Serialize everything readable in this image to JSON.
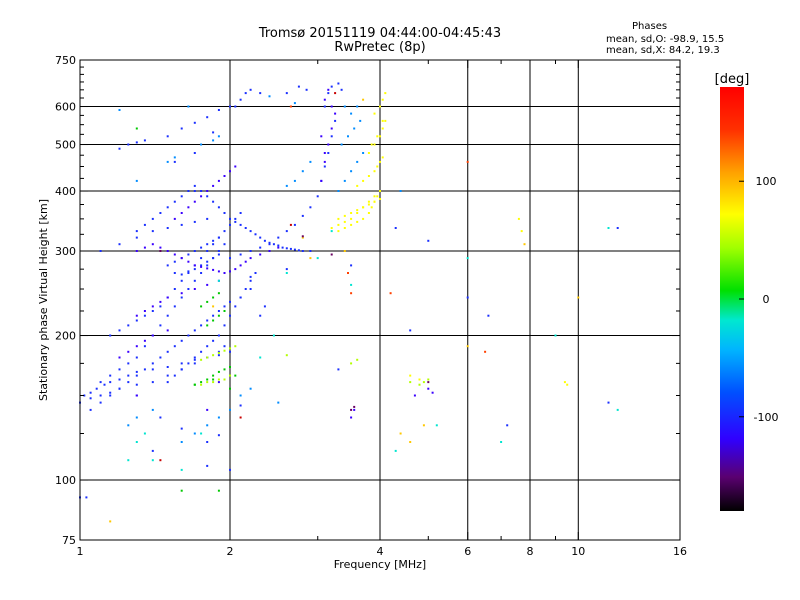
{
  "header": {
    "title_line1": "Tromsø 20151119 04:44:00-04:45:43",
    "title_line2": "RwPretec (8p)"
  },
  "stats": {
    "heading": "Phases",
    "line1": "mean, sd,O: -98.9, 15.5",
    "line2": "mean, sd,X:  84.2, 19.3"
  },
  "chart_data": {
    "type": "scatter",
    "xlabel": "Frequency [MHz]",
    "ylabel": "Stationary phase Virtual Height [km]",
    "xscale": "log",
    "yscale": "log",
    "xlim": [
      1,
      16
    ],
    "ylim": [
      75,
      750
    ],
    "xticks": [
      1,
      2,
      4,
      6,
      8,
      10,
      16
    ],
    "xtick_labels": [
      "1",
      "2",
      "4",
      "6",
      "8",
      "10",
      "16"
    ],
    "x_minor_ticks": [
      3,
      5,
      7,
      9
    ],
    "yticks": [
      75,
      100,
      200,
      300,
      400,
      500,
      600,
      750
    ],
    "ytick_labels": [
      "75",
      "100",
      "200",
      "300",
      "400",
      "500",
      "600",
      "750"
    ],
    "y_minor_ticks": [
      125,
      150,
      175,
      225,
      250,
      275,
      325,
      350,
      375,
      425,
      450,
      475,
      525,
      550,
      575,
      625,
      650,
      675,
      700,
      725
    ],
    "grid": true,
    "colorbar": {
      "label": "[deg]",
      "range": [
        -180,
        180
      ],
      "ticks": [
        100,
        0,
        -100
      ],
      "tick_labels": [
        "100",
        "0",
        "-100"
      ]
    },
    "series": [
      {
        "phase": -100,
        "color": "#1a2fff",
        "x": [
          1.0,
          1.05,
          1.1,
          1.15,
          1.2,
          1.3,
          1.4,
          1.5,
          1.6,
          1.7,
          1.8,
          1.9,
          1.95,
          1.55,
          1.6,
          1.65,
          1.7,
          1.75,
          1.8,
          1.85,
          1.9,
          1.5,
          1.55,
          1.6,
          1.65,
          1.7,
          1.75,
          1.8,
          1.85,
          1.9,
          2.0,
          2.1,
          2.2,
          2.3,
          2.4,
          2.5,
          2.6,
          2.7,
          2.8,
          2.9,
          3.0,
          3.05,
          3.1,
          3.15,
          3.2,
          3.25,
          3.1,
          3.15,
          3.2,
          3.3,
          3.35,
          1.2,
          1.25,
          1.3,
          1.35,
          1.5,
          1.6,
          1.7,
          1.8,
          1.9,
          2.0,
          1.55,
          1.7,
          1.85,
          2.05,
          2.1,
          2.15,
          2.2,
          2.3,
          2.6,
          2.75,
          2.85,
          1.1,
          1.15,
          1.2,
          1.25,
          1.3,
          1.35,
          1.4,
          1.45,
          1.5,
          1.55,
          1.6,
          1.65,
          1.7,
          1.75,
          1.8,
          1.85,
          1.9,
          1.95,
          1.3,
          1.35,
          1.4,
          1.45,
          1.5,
          1.55,
          1.6,
          1.65,
          1.7,
          1.75,
          1.8,
          1.85,
          1.9,
          1.95,
          2.0,
          2.05,
          2.1,
          2.15,
          2.2,
          2.25,
          2.3,
          2.35,
          2.4,
          2.45,
          2.5,
          2.55,
          2.6,
          2.65,
          2.7,
          2.75,
          2.8,
          2.9,
          1.15,
          1.2,
          1.25,
          1.3,
          1.35,
          1.4,
          1.45,
          1.5,
          1.55,
          1.6,
          1.65,
          1.7,
          1.75,
          1.8,
          1.85,
          1.9,
          1.95,
          2.0,
          2.05,
          2.1,
          1.5,
          1.55,
          1.6,
          1.65,
          1.7,
          1.75,
          1.8,
          1.85,
          1.9,
          1.95,
          2.0,
          2.05,
          2.1,
          2.15,
          2.2,
          2.25,
          1.02,
          1.05,
          1.08,
          1.12,
          1.15,
          1.2,
          1.25,
          1.3,
          1.4,
          1.5,
          1.6,
          1.7,
          1.8,
          1.9,
          2.0,
          1.05,
          1.1,
          1.15,
          1.2,
          1.25,
          1.3,
          1.35,
          1.4,
          1.45,
          1.5,
          1.55,
          1.6,
          1.65,
          1.7,
          1.75,
          1.8,
          1.85,
          1.9,
          1.95,
          2.0,
          1.1,
          1.2,
          1.3,
          1.4,
          1.5,
          1.6,
          1.7,
          1.8,
          2.1,
          2.2,
          2.3,
          2.35,
          3.5,
          4.6,
          6.6,
          6.0,
          5.0,
          7.2,
          12.0,
          11.5,
          4.3,
          2.6,
          2.2,
          3.3,
          1.7,
          1.8,
          1.4,
          1.6,
          1.9,
          2.1,
          1.45,
          2.0,
          1.3,
          1.8,
          1.0,
          1.03
        ],
        "y": [
          145,
          148,
          150,
          152,
          155,
          158,
          160,
          165,
          170,
          175,
          180,
          185,
          190,
          270,
          268,
          272,
          275,
          280,
          285,
          290,
          295,
          280,
          285,
          290,
          295,
          300,
          305,
          310,
          315,
          320,
          290,
          295,
          300,
          305,
          310,
          320,
          330,
          340,
          355,
          370,
          390,
          420,
          450,
          480,
          520,
          560,
          600,
          640,
          660,
          670,
          650,
          490,
          500,
          505,
          510,
          520,
          540,
          555,
          570,
          590,
          600,
          460,
          480,
          530,
          600,
          620,
          640,
          650,
          640,
          640,
          660,
          650,
          160,
          165,
          170,
          175,
          180,
          190,
          200,
          210,
          220,
          230,
          240,
          250,
          260,
          270,
          280,
          290,
          300,
          310,
          330,
          340,
          350,
          360,
          370,
          380,
          390,
          400,
          410,
          400,
          390,
          380,
          370,
          360,
          350,
          345,
          340,
          335,
          330,
          325,
          320,
          315,
          312,
          310,
          308,
          305,
          304,
          303,
          302,
          301,
          300,
          300,
          200,
          205,
          210,
          215,
          220,
          225,
          230,
          240,
          250,
          260,
          270,
          280,
          290,
          300,
          310,
          320,
          330,
          340,
          350,
          360,
          160,
          165,
          170,
          175,
          180,
          185,
          190,
          195,
          200,
          210,
          220,
          230,
          240,
          250,
          260,
          270,
          150,
          152,
          155,
          158,
          160,
          162,
          165,
          168,
          170,
          172,
          175,
          178,
          180,
          182,
          185,
          140,
          145,
          150,
          155,
          160,
          165,
          170,
          175,
          180,
          185,
          190,
          195,
          200,
          205,
          210,
          215,
          220,
          225,
          230,
          235,
          300,
          310,
          320,
          330,
          335,
          340,
          345,
          350,
          240,
          250,
          220,
          230,
          280,
          205,
          220,
          240,
          315,
          130,
          335,
          145,
          335,
          275,
          265,
          170,
          400,
          120,
          115,
          128,
          124,
          143,
          135,
          105,
          150,
          107,
          92,
          92
        ]
      },
      {
        "phase": -130,
        "color": "#3a00ff",
        "x": [
          3.05,
          3.1,
          3.15,
          3.2,
          3.25,
          3.1,
          3.15,
          3.2,
          3.05,
          3.1,
          1.3,
          1.35,
          1.4,
          1.45,
          1.5,
          1.55,
          1.6,
          1.65,
          1.7,
          1.75,
          1.8,
          1.85,
          1.9,
          1.95,
          2.0,
          2.05,
          2.1,
          2.15,
          2.2,
          2.3,
          2.4,
          2.5,
          1.55,
          1.6,
          1.65,
          1.7,
          1.75,
          1.8,
          1.85,
          1.9,
          1.95,
          2.0,
          2.05,
          1.3,
          1.35,
          1.4,
          1.45,
          1.5,
          1.6,
          1.7,
          1.8,
          1.9,
          1.2,
          1.25,
          1.3,
          1.35,
          1.4,
          1.5,
          3.5,
          3.55,
          4.7,
          5.0,
          5.1,
          1.3,
          1.9,
          1.8
        ],
        "y": [
          420,
          460,
          500,
          540,
          580,
          620,
          650,
          600,
          520,
          480,
          300,
          305,
          310,
          305,
          300,
          295,
          290,
          285,
          280,
          278,
          276,
          274,
          272,
          270,
          272,
          275,
          280,
          285,
          290,
          295,
          300,
          305,
          350,
          360,
          370,
          380,
          390,
          400,
          410,
          420,
          430,
          440,
          450,
          220,
          225,
          230,
          235,
          240,
          245,
          250,
          255,
          260,
          180,
          185,
          190,
          195,
          200,
          205,
          135,
          140,
          150,
          155,
          152,
          150,
          160,
          140
        ]
      },
      {
        "phase": -60,
        "color": "#008cff",
        "x": [
          3.3,
          3.4,
          3.5,
          3.6,
          3.7,
          3.35,
          3.45,
          3.55,
          3.65,
          3.5,
          3.6,
          2.6,
          2.7,
          2.8,
          2.9,
          1.6,
          1.7,
          1.8,
          1.9,
          2.0,
          2.5,
          1.75,
          1.85,
          1.5,
          1.55,
          1.25,
          1.3,
          1.4,
          2.1,
          2.2,
          3.4,
          4.4,
          1.3,
          1.2,
          1.65,
          2.7,
          2.4,
          1.9
        ],
        "y": [
          400,
          420,
          440,
          460,
          480,
          500,
          520,
          540,
          560,
          580,
          600,
          410,
          420,
          440,
          460,
          120,
          125,
          130,
          135,
          140,
          145,
          500,
          510,
          460,
          470,
          130,
          135,
          140,
          150,
          155,
          600,
          400,
          420,
          590,
          600,
          610,
          630,
          520
        ]
      },
      {
        "phase": -20,
        "color": "#00e5d0",
        "x": [
          1.25,
          1.3,
          1.35,
          2.6,
          3.0,
          3.5,
          6.0,
          9.0,
          11.5,
          12.0,
          1.4,
          1.6,
          2.3,
          4.3,
          5.2,
          7.0,
          2.45,
          1.75,
          1.9,
          3.2
        ],
        "y": [
          110,
          120,
          125,
          270,
          290,
          255,
          290,
          200,
          335,
          140,
          110,
          105,
          180,
          115,
          130,
          120,
          200,
          125,
          260,
          330
        ]
      },
      {
        "phase": 10,
        "color": "#00c800",
        "x": [
          1.7,
          1.75,
          1.8,
          1.85,
          1.9,
          1.95,
          2.0,
          1.8,
          1.85,
          1.9,
          1.95,
          1.75,
          1.8,
          1.85,
          1.9,
          1.3,
          1.6,
          1.9,
          2.0,
          1.7,
          1.85,
          2.05
        ],
        "y": [
          158,
          160,
          162,
          165,
          168,
          170,
          172,
          210,
          215,
          220,
          225,
          230,
          235,
          240,
          245,
          540,
          95,
          95,
          155,
          158,
          162,
          165
        ]
      },
      {
        "phase": 80,
        "color": "#b4ff00",
        "x": [
          1.75,
          1.8,
          1.85,
          1.9,
          1.95,
          2.0,
          1.75,
          1.8,
          1.85,
          1.9,
          1.95,
          2.0,
          2.05,
          4.6,
          4.8,
          4.9,
          5.0,
          3.5,
          3.6,
          2.6
        ],
        "y": [
          158,
          160,
          160,
          162,
          162,
          165,
          178,
          180,
          182,
          184,
          186,
          188,
          190,
          160,
          158,
          160,
          162,
          175,
          178,
          182
        ]
      },
      {
        "phase": 110,
        "color": "#ffff00",
        "x": [
          3.3,
          3.4,
          3.5,
          3.6,
          3.7,
          3.8,
          3.85,
          3.9,
          3.95,
          4.0,
          3.2,
          3.3,
          3.4,
          3.5,
          3.6,
          3.7,
          3.8,
          3.9,
          4.0,
          3.3,
          3.4,
          3.5,
          3.6,
          3.7,
          3.8,
          3.9,
          4.0,
          3.6,
          3.7,
          3.8,
          3.9,
          3.95,
          4.0,
          4.05,
          3.8,
          3.9,
          4.0,
          4.05,
          4.1,
          3.9,
          4.0,
          4.05,
          4.1,
          3.85,
          3.95,
          4.05,
          9.4,
          9.5,
          7.6,
          7.7,
          4.6,
          4.8
        ],
        "y": [
          330,
          335,
          340,
          345,
          350,
          360,
          370,
          380,
          390,
          400,
          335,
          340,
          345,
          350,
          360,
          370,
          380,
          390,
          400,
          350,
          355,
          360,
          365,
          370,
          375,
          380,
          385,
          410,
          420,
          430,
          440,
          450,
          460,
          470,
          480,
          500,
          520,
          540,
          560,
          580,
          600,
          620,
          640,
          500,
          520,
          560,
          160,
          158,
          350,
          330,
          165,
          162
        ]
      },
      {
        "phase": 130,
        "color": "#ffc800",
        "x": [
          1.15,
          2.9,
          4.9,
          6.0,
          7.8,
          10.0,
          4.4,
          3.4,
          2.8,
          1.85,
          3.7,
          4.6
        ],
        "y": [
          82,
          290,
          130,
          190,
          310,
          240,
          125,
          300,
          320,
          230,
          620,
          120
        ]
      },
      {
        "phase": 160,
        "color": "#ff4000",
        "x": [
          3.5,
          4.2,
          6.0,
          6.5,
          2.65,
          3.45
        ],
        "y": [
          245,
          245,
          460,
          185,
          600,
          270
        ]
      },
      {
        "phase": 175,
        "color": "#c80000",
        "x": [
          1.45,
          2.1,
          2.65,
          3.25
        ],
        "y": [
          110,
          135,
          340,
          640
        ]
      },
      {
        "phase": -160,
        "color": "#6a0060",
        "x": [
          3.5,
          3.55,
          1.45,
          2.8,
          3.2,
          5.0
        ],
        "y": [
          140,
          142,
          300,
          322,
          295,
          160
        ]
      }
    ]
  }
}
